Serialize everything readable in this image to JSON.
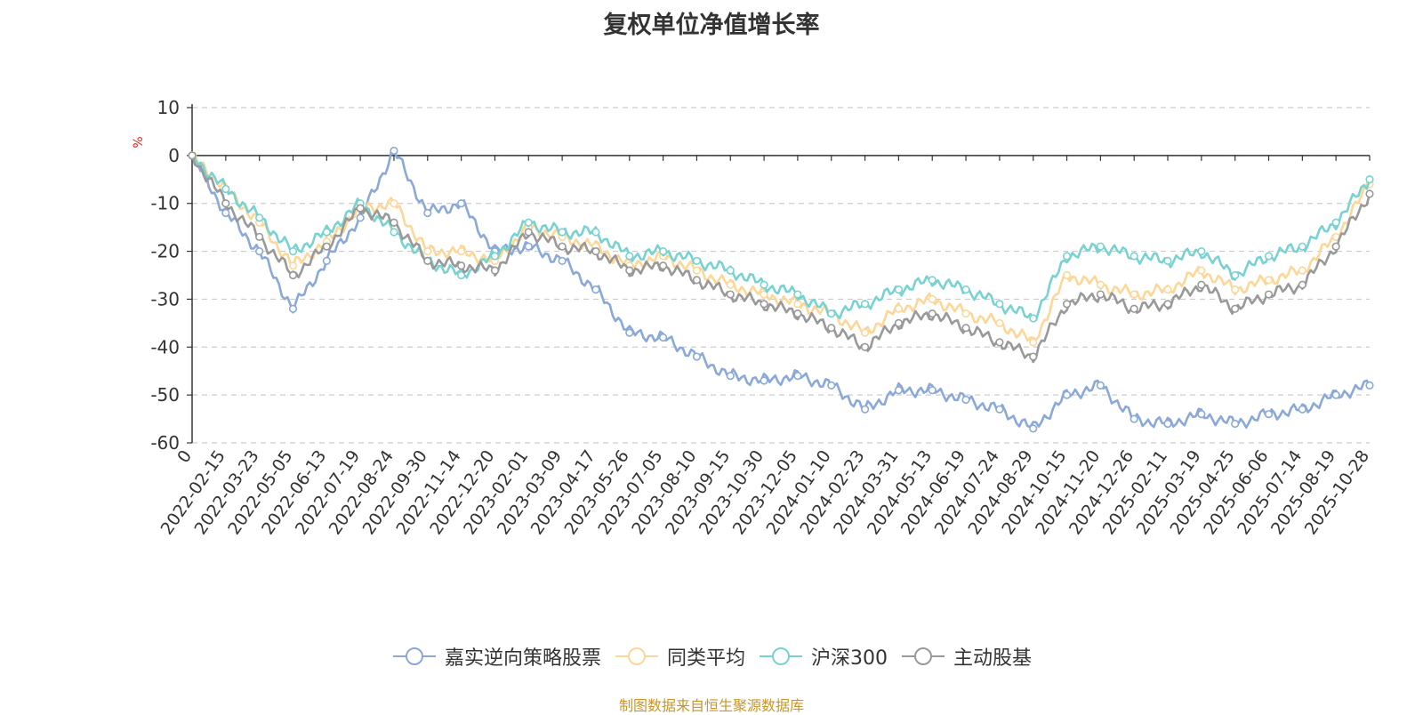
{
  "chart_data": {
    "type": "line",
    "title": "复权单位净值增长率",
    "ylabel": "%",
    "ylim": [
      -60,
      10
    ],
    "yticks": [
      "10",
      "0",
      "-10",
      "-20",
      "-30",
      "-40",
      "-50",
      "-60"
    ],
    "grid": true,
    "legend_position": "bottom",
    "categories": [
      "0",
      "2022-02-15",
      "2022-03-23",
      "2022-05-05",
      "2022-06-13",
      "2022-07-19",
      "2022-08-24",
      "2022-09-30",
      "2022-11-14",
      "2022-12-20",
      "2023-02-01",
      "2023-03-09",
      "2023-04-17",
      "2023-05-26",
      "2023-07-05",
      "2023-08-10",
      "2023-09-15",
      "2023-10-30",
      "2023-12-05",
      "2024-01-10",
      "2024-02-23",
      "2024-03-31",
      "2024-05-13",
      "2024-06-19",
      "2024-07-24",
      "2024-08-29",
      "2024-10-15",
      "2024-11-20",
      "2024-12-26",
      "2025-02-11",
      "2025-03-19",
      "2025-04-25",
      "2025-06-06",
      "2025-07-14",
      "2025-08-19",
      "2025-10-28"
    ],
    "series": [
      {
        "name": "嘉实逆向策略股票",
        "color": "#8aa9d8",
        "values": [
          0,
          -12,
          -20,
          -32,
          -22,
          -13,
          1,
          -12,
          -10,
          -20,
          -19,
          -22,
          -28,
          -37,
          -38,
          -42,
          -46,
          -47,
          -46,
          -48,
          -53,
          -49,
          -49,
          -51,
          -53,
          -57,
          -50,
          -48,
          -55,
          -56,
          -54,
          -56,
          -54,
          -53,
          -50,
          -48
        ]
      },
      {
        "name": "同类平均",
        "color": "#fcd798",
        "values": [
          0,
          -7,
          -14,
          -23,
          -18,
          -11,
          -10,
          -20,
          -20,
          -22,
          -15,
          -17,
          -19,
          -23,
          -21,
          -24,
          -27,
          -29,
          -31,
          -33,
          -37,
          -32,
          -30,
          -33,
          -35,
          -39,
          -25,
          -27,
          -29,
          -28,
          -24,
          -28,
          -26,
          -24,
          -17,
          -6
        ]
      },
      {
        "name": "沪深300",
        "color": "#79d2d2",
        "values": [
          0,
          -7,
          -13,
          -20,
          -16,
          -10,
          -16,
          -22,
          -25,
          -21,
          -14,
          -16,
          -16,
          -21,
          -20,
          -22,
          -24,
          -27,
          -29,
          -33,
          -31,
          -28,
          -26,
          -28,
          -31,
          -34,
          -21,
          -19,
          -21,
          -22,
          -20,
          -25,
          -21,
          -19,
          -14,
          -5
        ]
      },
      {
        "name": "主动股基",
        "color": "#999999",
        "values": [
          0,
          -10,
          -17,
          -25,
          -19,
          -11,
          -14,
          -22,
          -23,
          -24,
          -16,
          -19,
          -20,
          -24,
          -23,
          -26,
          -29,
          -31,
          -33,
          -36,
          -40,
          -35,
          -33,
          -36,
          -39,
          -42,
          -31,
          -29,
          -32,
          -31,
          -27,
          -32,
          -29,
          -27,
          -19,
          -8
        ]
      }
    ]
  },
  "footer": "制图数据来自恒生聚源数据库"
}
